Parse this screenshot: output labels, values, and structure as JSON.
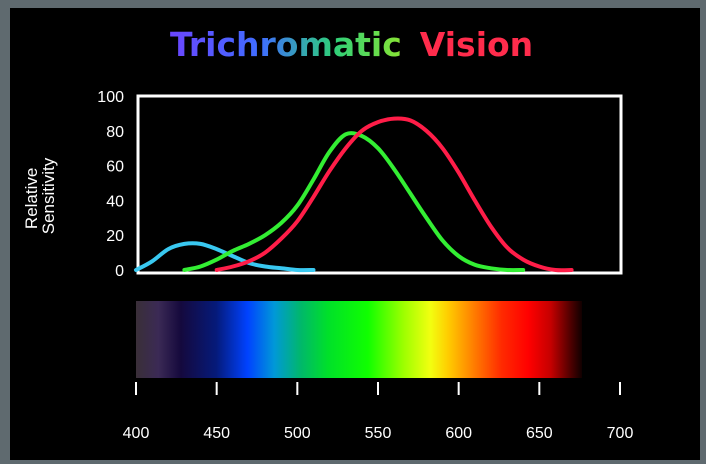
{
  "chart_data": {
    "type": "line",
    "title_parts": [
      "Trichromatic",
      "Vision"
    ],
    "ylabel_lines": [
      "Relative",
      "Sensitivity"
    ],
    "xlabel": "",
    "xlim": [
      400,
      700
    ],
    "ylim": [
      0,
      100
    ],
    "yticks": [
      0,
      20,
      40,
      60,
      80,
      100
    ],
    "xticks": [
      400,
      450,
      500,
      550,
      600,
      650,
      700
    ],
    "grid": false,
    "series": [
      {
        "color": "#39c8f0",
        "x": [
          400,
          410,
          420,
          430,
          440,
          450,
          460,
          470,
          480,
          490,
          500,
          510
        ],
        "y": [
          0,
          5,
          12,
          15,
          15,
          12,
          8,
          4,
          2,
          1,
          0,
          0
        ]
      },
      {
        "color": "#33ee33",
        "x": [
          430,
          440,
          450,
          460,
          470,
          480,
          490,
          500,
          510,
          520,
          530,
          540,
          550,
          560,
          570,
          580,
          590,
          600,
          610,
          620,
          630,
          640
        ],
        "y": [
          0,
          2,
          6,
          11,
          15,
          20,
          27,
          37,
          52,
          68,
          78,
          77,
          70,
          58,
          44,
          30,
          17,
          8,
          3,
          1,
          0,
          0
        ]
      },
      {
        "color": "#ff1d48",
        "x": [
          450,
          460,
          470,
          480,
          490,
          500,
          510,
          520,
          530,
          540,
          550,
          560,
          570,
          580,
          590,
          600,
          610,
          620,
          630,
          640,
          650,
          660,
          670
        ],
        "y": [
          0,
          2,
          5,
          10,
          18,
          28,
          42,
          57,
          70,
          80,
          85,
          87,
          86,
          80,
          70,
          56,
          40,
          25,
          13,
          6,
          2,
          0,
          0
        ]
      }
    ],
    "spectrum_range": [
      400,
      680
    ]
  }
}
